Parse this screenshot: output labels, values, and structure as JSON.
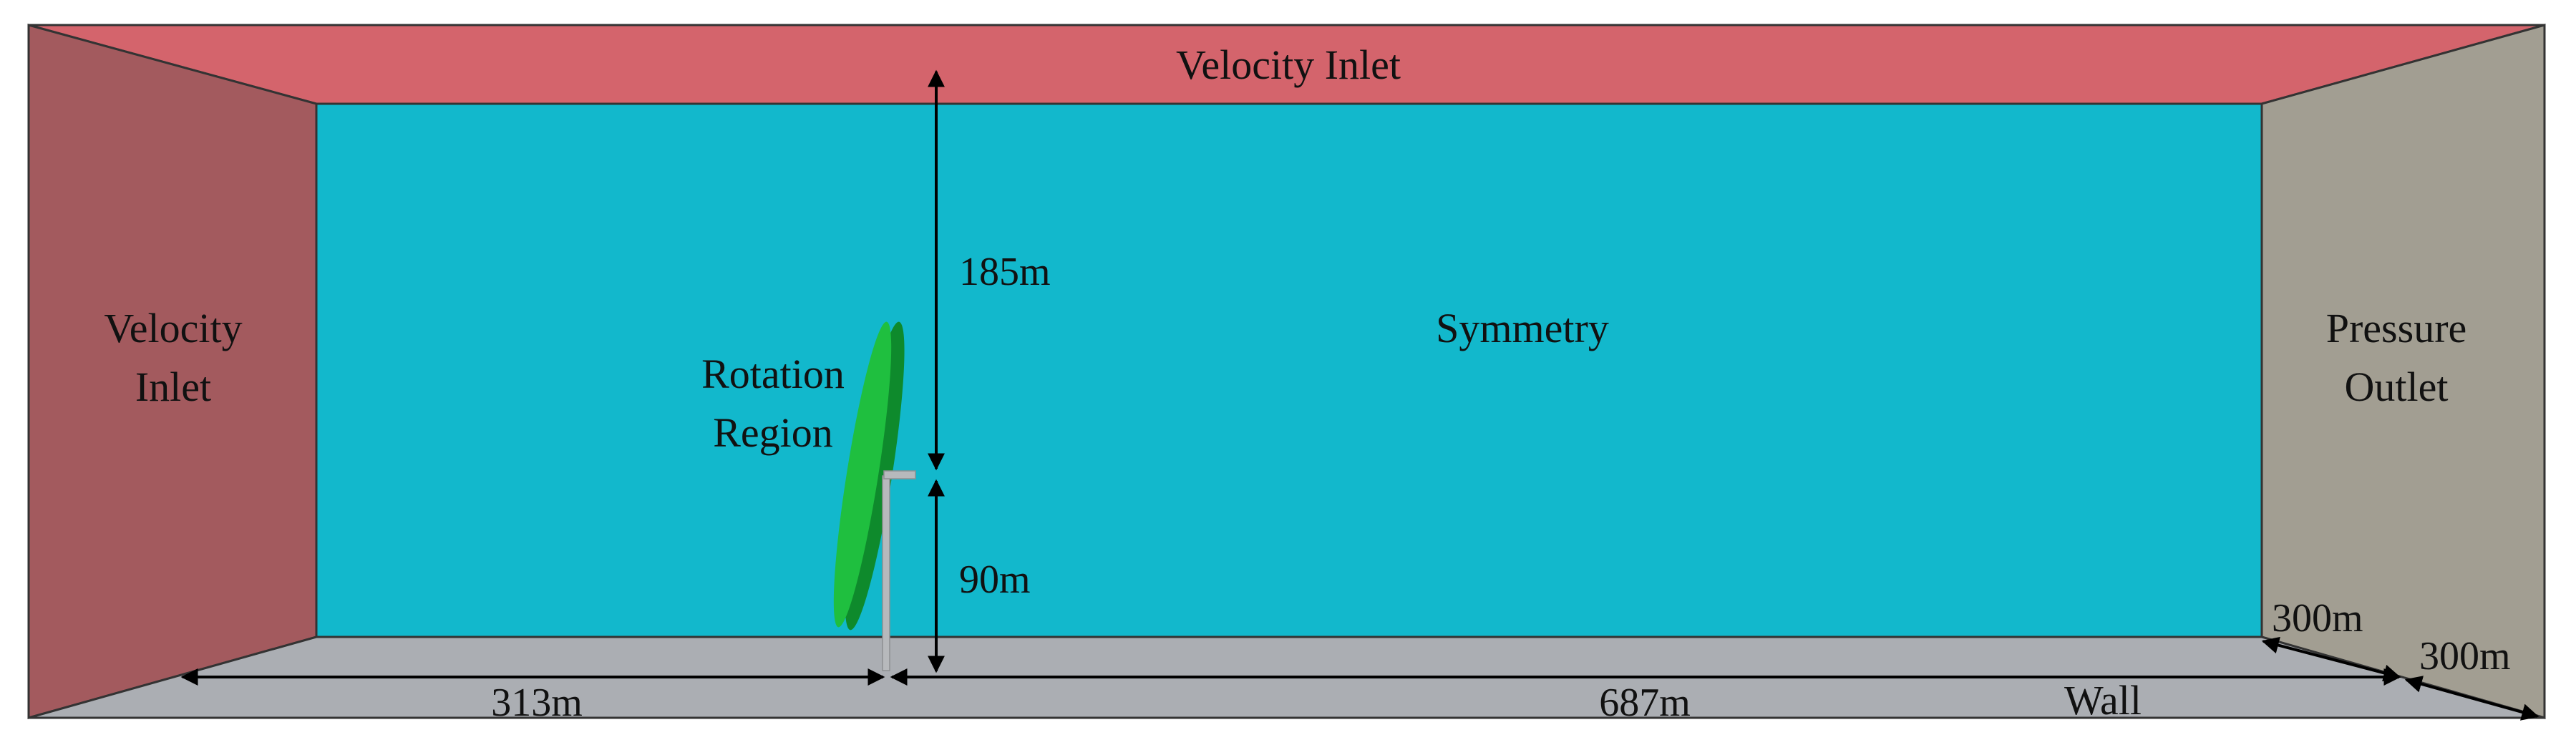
{
  "faces": {
    "top": {
      "label": "Velocity Inlet",
      "color": "#d4646c"
    },
    "left": {
      "label_line1": "Velocity",
      "label_line2": "Inlet",
      "color": "#a35a5e"
    },
    "back": {
      "label": "Symmetry",
      "color": "#12b8cc"
    },
    "right": {
      "label_line1": "Pressure",
      "label_line2": "Outlet",
      "color": "#a29e92"
    },
    "bottom": {
      "label": "Wall",
      "color": "#abaeb3"
    }
  },
  "rotor": {
    "label_line1": "Rotation",
    "label_line2": "Region",
    "color": "#1fbf3f",
    "dark_color": "#0e8a2c",
    "tower_color": "#b7b9bc"
  },
  "dimensions": {
    "above_hub": "185m",
    "hub_height": "90m",
    "upstream": "313m",
    "downstream": "687m",
    "depth_inner": "300m",
    "depth_outer": "300m"
  }
}
